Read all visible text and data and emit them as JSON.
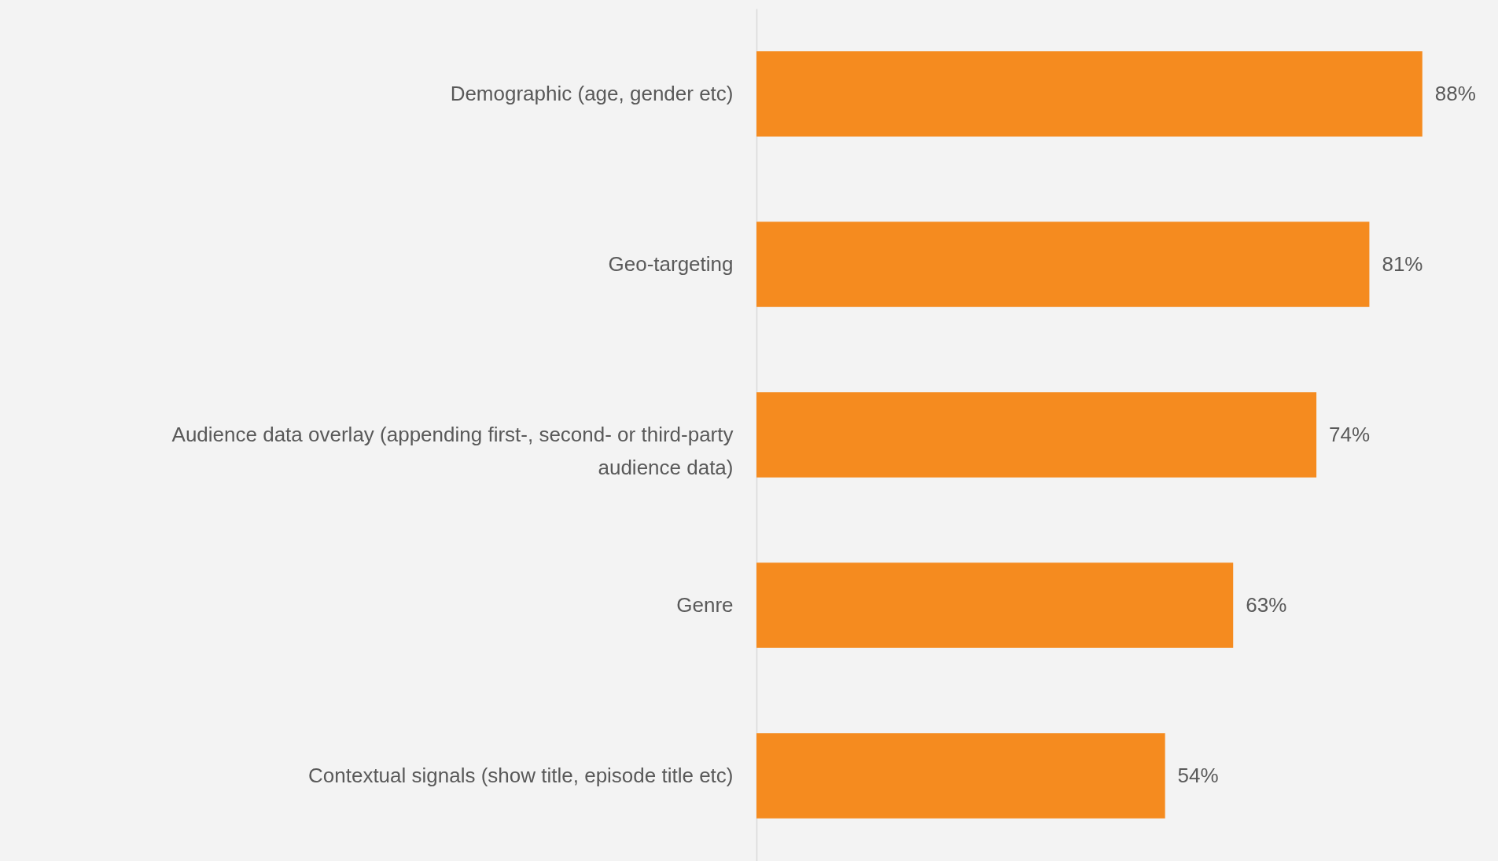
{
  "chart_data": {
    "type": "bar",
    "orientation": "horizontal",
    "categories": [
      "Demographic (age, gender etc)",
      "Geo-targeting",
      "Audience data overlay (appending first-, second- or third-party audience data)",
      "Genre",
      "Contextual signals (show title, episode title etc)"
    ],
    "values": [
      88,
      81,
      74,
      63,
      54
    ],
    "value_labels": [
      "88%",
      "81%",
      "74%",
      "63%",
      "54%"
    ],
    "color": "#f58b1f",
    "xlim": [
      0,
      98
    ]
  }
}
